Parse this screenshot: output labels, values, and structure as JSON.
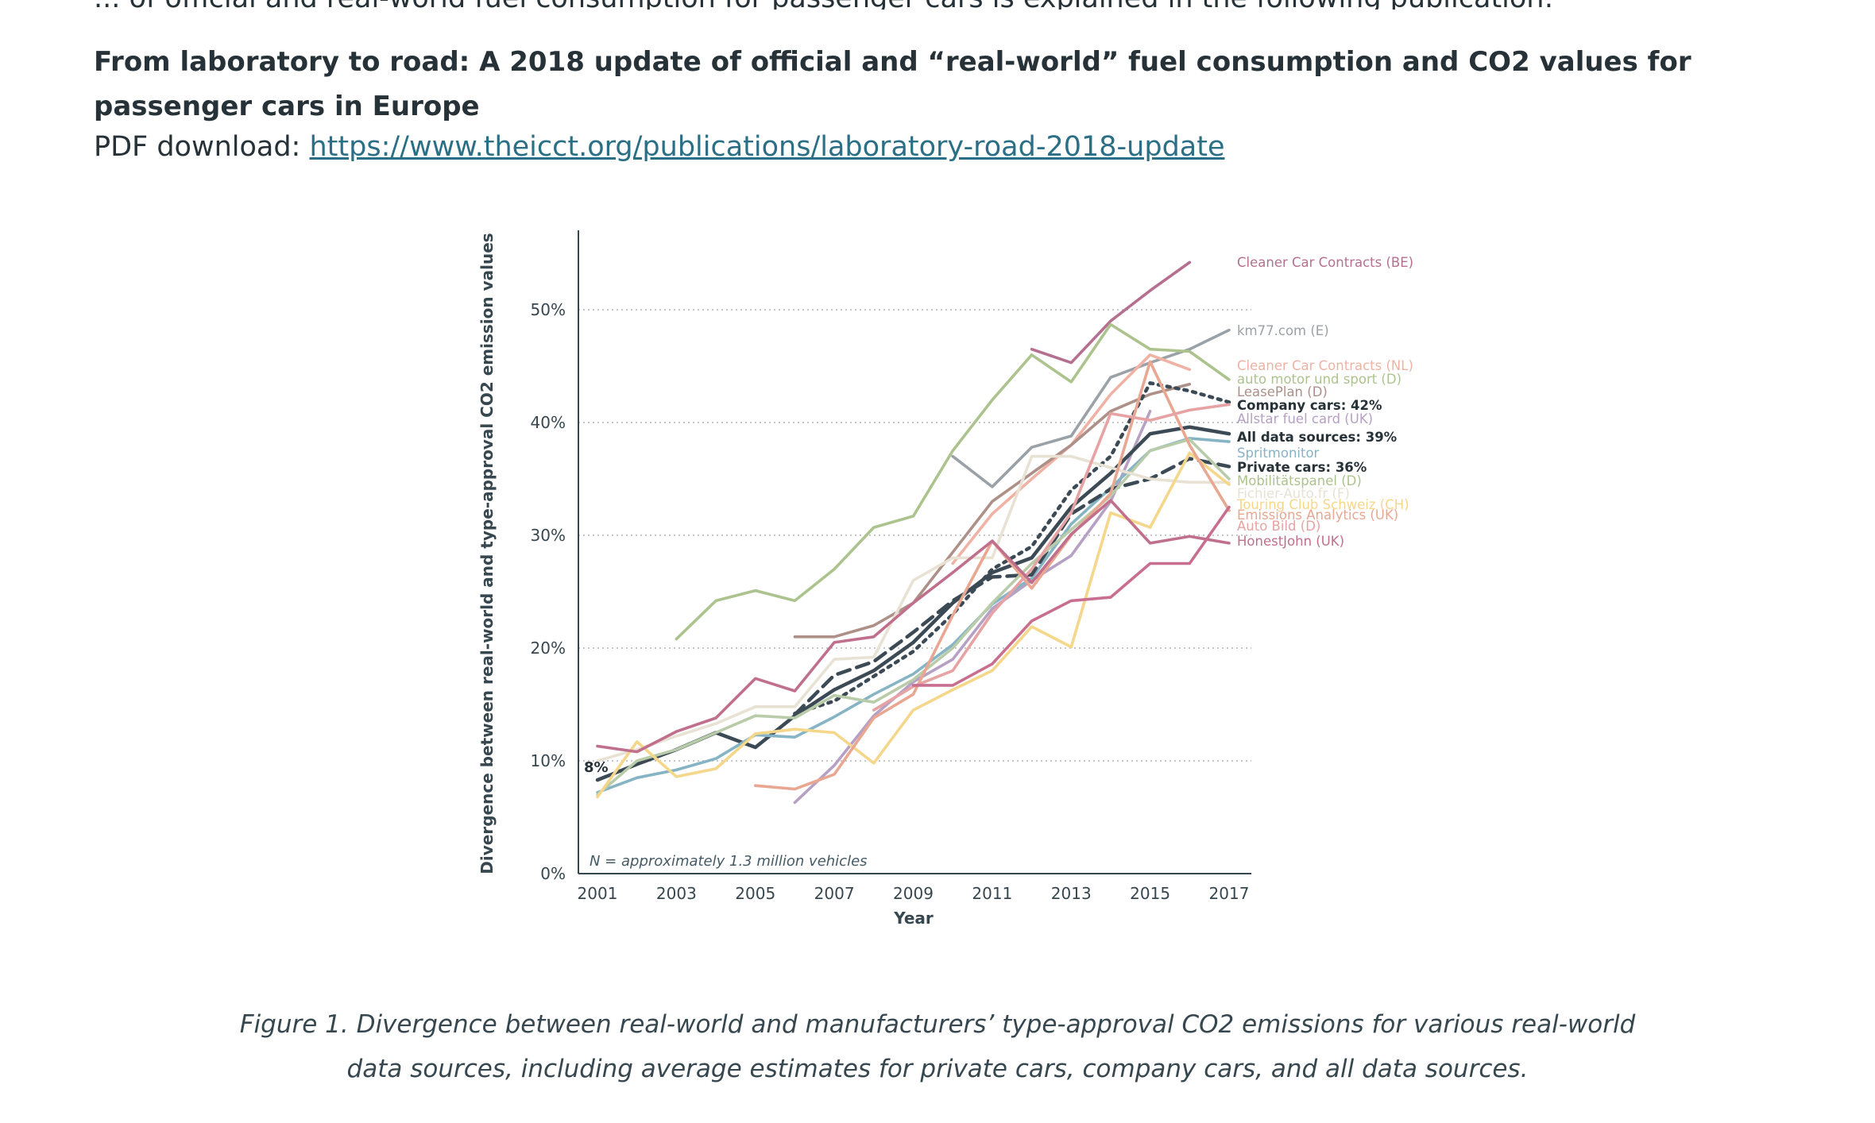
{
  "article": {
    "intro_fragment": "... of official and real-world fuel consumption for passenger cars is explained in the following publication:",
    "title": "From laboratory to road: A 2018 update of official and “real-world” fuel consumption and CO2 values for passenger cars in Europe",
    "pdf_label": "PDF download: ",
    "pdf_link": "https://www.theicct.org/publications/laboratory-road-2018-update ",
    "caption": "Figure 1. Divergence between real-world and manufacturers’ type-approval CO2 emissions for various real-world data sources, including average estimates for private cars, company cars, and all data sources."
  },
  "chart_data": {
    "type": "line",
    "title": "",
    "xlabel": "Year",
    "ylabel": "Divergence between real-world and type-approval CO2 emission values",
    "xlim": [
      2001,
      2017
    ],
    "ylim": [
      0,
      57
    ],
    "x_ticks": [
      "2001",
      "2003",
      "2005",
      "2007",
      "2009",
      "2011",
      "2013",
      "2015",
      "2017"
    ],
    "y_ticks": [
      "0%",
      "10%",
      "20%",
      "30%",
      "40%",
      "50%"
    ],
    "grid": "horizontal dotted",
    "annotation": "N = approximately 1.3 million vehicles",
    "start_label": "8%",
    "series": [
      {
        "name": "Cleaner Car Contracts (BE)",
        "color": "#b5708f",
        "dash": "solid",
        "x": [
          2012,
          2013,
          2014,
          2015,
          2016
        ],
        "values": [
          46.5,
          45.3,
          49,
          51.7,
          54.2
        ]
      },
      {
        "name": "km77.com (E)",
        "color": "#9aa1a7",
        "dash": "solid",
        "x": [
          2010,
          2011,
          2012,
          2013,
          2014,
          2015,
          2016,
          2017
        ],
        "values": [
          37,
          34.3,
          37.8,
          38.8,
          44,
          45.3,
          46.5,
          48.2
        ]
      },
      {
        "name": "Cleaner Car Contracts (NL)",
        "color": "#f0b2a5",
        "dash": "solid",
        "x": [
          2010,
          2011,
          2012,
          2013,
          2014,
          2015,
          2016
        ],
        "values": [
          27.5,
          31.9,
          35,
          38,
          42.5,
          46,
          44.7
        ]
      },
      {
        "name": "auto motor und sport (D)",
        "color": "#adc38e",
        "dash": "solid",
        "x": [
          2003,
          2004,
          2005,
          2006,
          2007,
          2008,
          2009,
          2010,
          2011,
          2012,
          2013,
          2014,
          2015,
          2016,
          2017
        ],
        "values": [
          20.8,
          24.2,
          25.1,
          24.2,
          27,
          30.7,
          31.7,
          37.5,
          42,
          46,
          43.6,
          48.7,
          46.5,
          46.3,
          43.8
        ]
      },
      {
        "name": "LeasePlan (D)",
        "color": "#ad9087",
        "dash": "solid",
        "x": [
          2006,
          2007,
          2008,
          2009,
          2010,
          2011,
          2012,
          2013,
          2014,
          2015,
          2016
        ],
        "values": [
          21,
          21,
          22,
          24,
          28.5,
          33,
          35.5,
          38,
          41,
          42.5,
          43.4
        ]
      },
      {
        "name": "Company cars: 42%",
        "color": "#3c4a55",
        "dash": "dotted",
        "x": [
          2006,
          2007,
          2008,
          2009,
          2010,
          2011,
          2012,
          2013,
          2014,
          2015,
          2016,
          2017
        ],
        "values": [
          14.2,
          15.3,
          17.5,
          19.7,
          23,
          27,
          29,
          34,
          37,
          43.5,
          42.8,
          41.8
        ]
      },
      {
        "name": "Allstar fuel card (UK)",
        "color": "#b6a0c4",
        "dash": "solid",
        "x": [
          2006,
          2007,
          2008,
          2009,
          2010,
          2011,
          2012,
          2013,
          2014,
          2015
        ],
        "values": [
          6.3,
          9.6,
          14,
          17,
          19,
          23.5,
          26,
          28.2,
          33,
          41
        ]
      },
      {
        "name": "All data sources: 39%",
        "color": "#3c4a55",
        "dash": "solid",
        "x": [
          2001,
          2002,
          2003,
          2004,
          2005,
          2006,
          2007,
          2008,
          2009,
          2010,
          2011,
          2012,
          2013,
          2014,
          2015,
          2016,
          2017
        ],
        "values": [
          8.3,
          9.7,
          11,
          12.5,
          11.2,
          14,
          16.3,
          18,
          20.5,
          24,
          26.7,
          28,
          32.5,
          35.5,
          39,
          39.6,
          39
        ]
      },
      {
        "name": "Spritmonitor",
        "color": "#86b4c4",
        "dash": "solid",
        "x": [
          2001,
          2002,
          2003,
          2004,
          2005,
          2006,
          2007,
          2008,
          2009,
          2010,
          2011,
          2012,
          2013,
          2014,
          2015,
          2016,
          2017
        ],
        "values": [
          7.2,
          8.5,
          9.2,
          10.2,
          12.3,
          12.1,
          13.9,
          15.9,
          17.7,
          20.3,
          23.9,
          26.2,
          31,
          34.2,
          37.5,
          38.6,
          38.3
        ]
      },
      {
        "name": "Private cars: 36%",
        "color": "#3c4a55",
        "dash": "dashed",
        "x": [
          2006,
          2007,
          2008,
          2009,
          2010,
          2011,
          2012,
          2013,
          2014,
          2015,
          2016,
          2017
        ],
        "values": [
          14.1,
          17.6,
          18.8,
          21.4,
          24.2,
          26.3,
          26.5,
          31.9,
          34.1,
          35,
          36.8,
          36.1
        ]
      },
      {
        "name": "Mobilitätspanel (D)",
        "color": "#b9ccaa",
        "dash": "solid",
        "x": [
          2001,
          2002,
          2003,
          2004,
          2005,
          2006,
          2007,
          2008,
          2009,
          2010,
          2011,
          2012,
          2013,
          2014,
          2015,
          2016,
          2017
        ],
        "values": [
          7,
          10,
          11,
          12.5,
          14,
          13.8,
          15.8,
          15.2,
          17.2,
          20,
          24,
          27.5,
          30.5,
          33.5,
          37.5,
          38.5,
          35
        ]
      },
      {
        "name": "Fichier Auto.fr (F)",
        "color": "#e7e2d4",
        "dash": "solid",
        "x": [
          2001,
          2002,
          2003,
          2004,
          2005,
          2006,
          2007,
          2008,
          2009,
          2010,
          2011,
          2012,
          2013,
          2014,
          2015,
          2016,
          2017
        ],
        "values": [
          10,
          11,
          12.2,
          13.3,
          14.8,
          14.8,
          19,
          19.2,
          26,
          28,
          28,
          37,
          37,
          36,
          35,
          34.7,
          34.7
        ]
      },
      {
        "name": "Touring Club Schweiz (CH)",
        "color": "#f5d78b",
        "dash": "solid",
        "x": [
          2001,
          2002,
          2003,
          2004,
          2005,
          2006,
          2007,
          2008,
          2009,
          2010,
          2011,
          2012,
          2013,
          2014,
          2015,
          2016,
          2017
        ],
        "values": [
          6.8,
          11.7,
          8.6,
          9.3,
          12.4,
          12.8,
          12.5,
          9.8,
          14.5,
          16.3,
          18,
          21.9,
          20.1,
          32,
          30.7,
          37.3,
          34.5
        ]
      },
      {
        "name": "Emissions Analytics (UK)",
        "color": "#e9a691",
        "dash": "solid",
        "x": [
          2005,
          2006,
          2007,
          2008,
          2009,
          2010,
          2011,
          2012,
          2013,
          2014,
          2015,
          2016,
          2017
        ],
        "values": [
          7.8,
          7.5,
          8.8,
          13.8,
          15.9,
          22.9,
          29.5,
          25.3,
          30,
          33.7,
          45.4,
          38,
          32.2
        ]
      },
      {
        "name": "Auto Bild (D)",
        "color": "#e7a3a3",
        "dash": "solid",
        "x": [
          2008,
          2009,
          2010,
          2011,
          2012,
          2013,
          2014,
          2015,
          2016,
          2017
        ],
        "values": [
          14.5,
          16.6,
          18,
          23.1,
          27,
          32,
          40.8,
          40.2,
          41.1,
          41.6
        ]
      },
      {
        "name": "HonestJohn (UK)",
        "color": "#c0708c",
        "dash": "solid",
        "x": [
          2001,
          2002,
          2003,
          2004,
          2005,
          2006,
          2007,
          2008,
          2009,
          2010,
          2011,
          2012,
          2013,
          2014,
          2015,
          2016,
          2017
        ],
        "values": [
          11.3,
          10.8,
          12.6,
          13.8,
          17.3,
          16.2,
          20.5,
          21,
          24,
          26.7,
          29.5,
          25.8,
          30.1,
          33.1,
          29.3,
          29.9,
          29.3
        ]
      },
      {
        "name": "",
        "color": "#c86f8f",
        "dash": "solid",
        "x": [
          2009,
          2010,
          2011,
          2012,
          2013,
          2014,
          2015,
          2016,
          2017
        ],
        "values": [
          16.7,
          16.7,
          18.6,
          22.4,
          24.2,
          24.5,
          27.5,
          27.5,
          32.5
        ]
      }
    ],
    "legend": [
      {
        "text": "Cleaner Car Contracts (BE)",
        "color": "#b5708f",
        "bold": false
      },
      {
        "text": "km77.com (E)",
        "color": "#9aa1a7",
        "bold": false
      },
      {
        "text": "Cleaner Car Contracts (NL)",
        "color": "#f0b2a5",
        "bold": false
      },
      {
        "text": "auto motor und sport (D)",
        "color": "#adc38e",
        "bold": false
      },
      {
        "text": "LeasePlan (D)",
        "color": "#ad9087",
        "bold": false
      },
      {
        "text": "Company cars: 42%",
        "color": "#263238",
        "bold": true
      },
      {
        "text": "Allstar fuel card (UK)",
        "color": "#b6a0c4",
        "bold": false
      },
      {
        "text": "All data sources: 39%",
        "color": "#263238",
        "bold": true
      },
      {
        "text": "Spritmonitor",
        "color": "#86b4c4",
        "bold": false
      },
      {
        "text": "Private cars: 36%",
        "color": "#263238",
        "bold": true
      },
      {
        "text": "Mobilitätspanel (D)",
        "color": "#adc38e",
        "bold": false
      },
      {
        "text": "Fichier-Auto.fr (F)",
        "color": "#e7e2d4",
        "bold": false
      },
      {
        "text": "Touring Club Schweiz (CH)",
        "color": "#f5d78b",
        "bold": false
      },
      {
        "text": "Emissions Analytics (UK)",
        "color": "#e9a691",
        "bold": false
      },
      {
        "text": "Auto Bild (D)",
        "color": "#e7a3a3",
        "bold": false
      },
      {
        "text": "HonestJohn (UK)",
        "color": "#c0708c",
        "bold": false
      }
    ]
  }
}
